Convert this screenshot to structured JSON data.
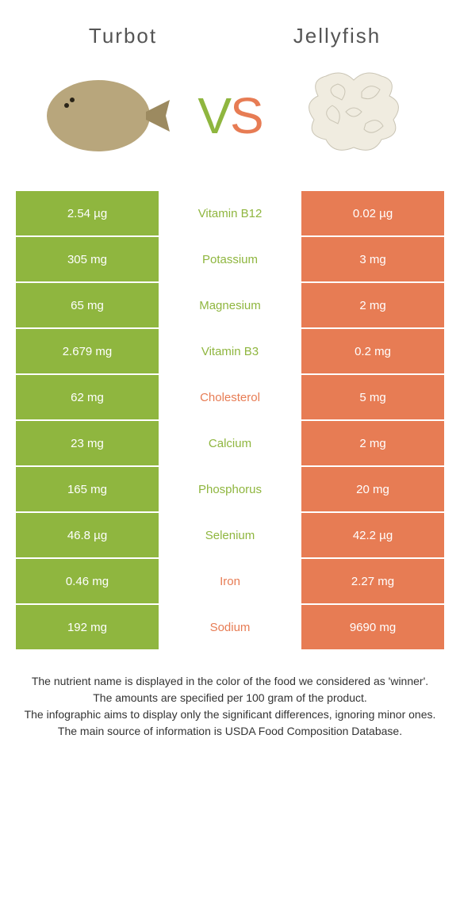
{
  "header": {
    "left_title": "Turbot",
    "right_title": "Jellyfish",
    "vs_v": "V",
    "vs_s": "S"
  },
  "colors": {
    "green": "#8fb63f",
    "orange": "#e77c54",
    "white": "#ffffff",
    "text_dark": "#333333"
  },
  "table": {
    "rows": [
      {
        "left": "2.54 µg",
        "nutrient": "Vitamin B12",
        "right": "0.02 µg",
        "winner": "left"
      },
      {
        "left": "305 mg",
        "nutrient": "Potassium",
        "right": "3 mg",
        "winner": "left"
      },
      {
        "left": "65 mg",
        "nutrient": "Magnesium",
        "right": "2 mg",
        "winner": "left"
      },
      {
        "left": "2.679 mg",
        "nutrient": "Vitamin B3",
        "right": "0.2 mg",
        "winner": "left"
      },
      {
        "left": "62 mg",
        "nutrient": "Cholesterol",
        "right": "5 mg",
        "winner": "right"
      },
      {
        "left": "23 mg",
        "nutrient": "Calcium",
        "right": "2 mg",
        "winner": "left"
      },
      {
        "left": "165 mg",
        "nutrient": "Phosphorus",
        "right": "20 mg",
        "winner": "left"
      },
      {
        "left": "46.8 µg",
        "nutrient": "Selenium",
        "right": "42.2 µg",
        "winner": "left"
      },
      {
        "left": "0.46 mg",
        "nutrient": "Iron",
        "right": "2.27 mg",
        "winner": "right"
      },
      {
        "left": "192 mg",
        "nutrient": "Sodium",
        "right": "9690 mg",
        "winner": "right"
      }
    ]
  },
  "footnote": {
    "line1": "The nutrient name is displayed in the color of the food we considered as 'winner'.",
    "line2": "The amounts are specified per 100 gram of the product.",
    "line3": "The infographic aims to display only the significant differences, ignoring minor ones.",
    "line4": "The main source of information is USDA Food Composition Database."
  }
}
